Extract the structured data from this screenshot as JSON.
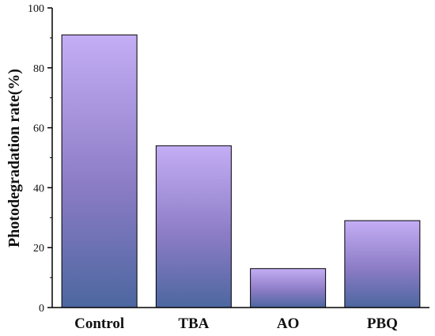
{
  "chart_data": {
    "type": "bar",
    "categories": [
      "Control",
      "TBA",
      "AO",
      "PBQ"
    ],
    "values": [
      91,
      54,
      13,
      29
    ],
    "title": "",
    "xlabel": "",
    "ylabel": "Photodegradation rate(%)",
    "ylim": [
      0,
      100
    ],
    "yticks": [
      0,
      20,
      40,
      60,
      80,
      100
    ],
    "grid": false,
    "legend": "none"
  },
  "colors": {
    "bar_top": "#c4aef5",
    "bar_mid": "#8c7cc6",
    "bar_bottom": "#4c67a0",
    "axis": "#000000"
  }
}
